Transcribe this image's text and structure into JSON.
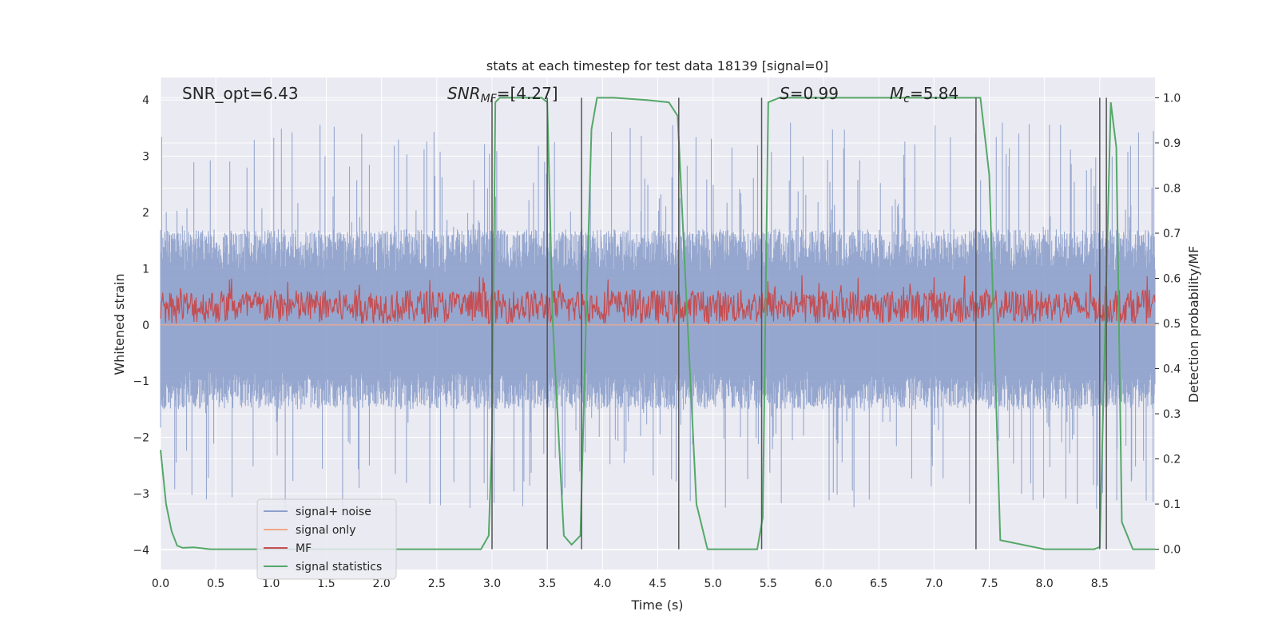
{
  "chart_data": {
    "type": "line",
    "title": "stats at each timestep for test data 18139 [signal=0]",
    "xlabel": "Time (s)",
    "ylabel": "Whitened strain",
    "ylabel_right": "Detection probability/MF",
    "xlim": [
      0.0,
      9.0
    ],
    "ylim": [
      -4.35,
      4.4
    ],
    "ylim_right": [
      -0.045,
      1.045
    ],
    "x_ticks": [
      "0.0",
      "0.5",
      "1.0",
      "1.5",
      "2.0",
      "2.5",
      "3.0",
      "3.5",
      "4.0",
      "4.5",
      "5.0",
      "5.5",
      "6.0",
      "6.5",
      "7.0",
      "7.5",
      "8.0",
      "8.5"
    ],
    "y_ticks": [
      "4",
      "3",
      "2",
      "1",
      "0",
      "−1",
      "−2",
      "−3",
      "−4"
    ],
    "y_right_ticks": [
      "1.0",
      "0.9",
      "0.8",
      "0.7",
      "0.6",
      "0.5",
      "0.4",
      "0.3",
      "0.2",
      "0.1",
      "0.0"
    ],
    "grid": true,
    "legend_position": "lower-left",
    "annotations": {
      "snr_opt": "SNR_opt=6.43",
      "snr_mf_base": "SNR",
      "snr_mf_sub": "MF",
      "snr_mf_value": "=[4.27]",
      "s_symbol": "S",
      "s_value": "=0.99",
      "mc_symbol": "M",
      "mc_sub": "c",
      "mc_value": "=5.84"
    },
    "series": [
      {
        "name": "signal+ noise",
        "color": "#8da0cb",
        "axis": "left",
        "kind": "noise",
        "envelope_typical": [
          -1.5,
          1.7
        ],
        "envelope_extreme": [
          -3.3,
          3.6
        ]
      },
      {
        "name": "signal only",
        "color": "#f0a88a",
        "axis": "left",
        "kind": "flat",
        "value": 0.0
      },
      {
        "name": "MF",
        "color": "#c44e52",
        "axis": "right",
        "kind": "noise",
        "range": [
          0.5,
          0.6
        ]
      },
      {
        "name": "signal statistics",
        "color": "#55a868",
        "axis": "right",
        "kind": "line",
        "x": [
          0.0,
          0.05,
          0.1,
          0.15,
          0.2,
          0.3,
          0.45,
          1.0,
          2.0,
          2.9,
          2.97,
          3.0,
          3.03,
          3.07,
          3.15,
          3.3,
          3.45,
          3.5,
          3.55,
          3.65,
          3.72,
          3.8,
          3.85,
          3.9,
          3.95,
          4.1,
          4.4,
          4.6,
          4.68,
          4.75,
          4.85,
          4.95,
          5.4,
          5.45,
          5.5,
          5.6,
          6.5,
          7.35,
          7.42,
          7.5,
          7.6,
          8.0,
          8.45,
          8.5,
          8.55,
          8.6,
          8.65,
          8.7,
          8.8,
          9.0
        ],
        "y": [
          0.22,
          0.1,
          0.04,
          0.008,
          0.003,
          0.004,
          0.0,
          0.0,
          0.0,
          0.0,
          0.03,
          0.25,
          0.99,
          1.0,
          1.0,
          1.0,
          1.0,
          0.99,
          0.5,
          0.03,
          0.01,
          0.03,
          0.5,
          0.93,
          1.0,
          1.0,
          0.995,
          0.99,
          0.96,
          0.6,
          0.1,
          0.0,
          0.0,
          0.07,
          0.99,
          1.0,
          1.0,
          1.0,
          1.0,
          0.83,
          0.02,
          0.0,
          0.0,
          0.005,
          0.5,
          0.99,
          0.89,
          0.06,
          0.0,
          0.0
        ]
      }
    ],
    "vertical_lines": [
      3.0,
      3.5,
      3.81,
      4.69,
      5.44,
      7.38,
      8.5,
      8.56
    ]
  }
}
